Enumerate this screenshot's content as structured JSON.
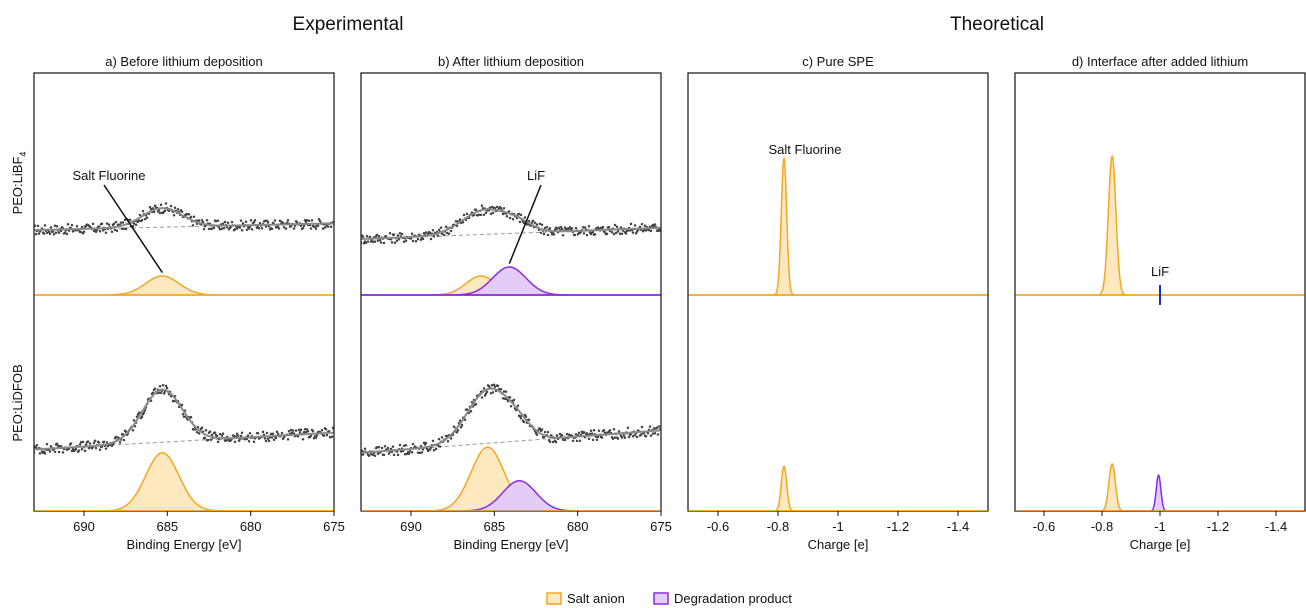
{
  "figure": {
    "group_titles": [
      "Experimental",
      "Theoretical"
    ],
    "row_labels": [
      "PEO:LiBF",
      "PEO:LiDFOB"
    ],
    "row_label_subscripts": [
      "4",
      ""
    ],
    "legend": [
      {
        "label": "Salt anion",
        "color": "#f5a623",
        "fill": "#fde8bf"
      },
      {
        "label": "Degradation product",
        "color": "#8b2be2",
        "fill": "#e3cdf6"
      }
    ]
  },
  "chart_data": [
    {
      "type": "area",
      "panel": "a",
      "title": "a) Before lithium deposition",
      "xlabel": "Binding Energy [eV]",
      "xlim": [
        693,
        675
      ],
      "xticks": [
        690,
        685,
        680,
        675
      ],
      "rows": [
        {
          "row": "PEO:LiBF4",
          "measured": {
            "baseline": [
              0.58,
              0.64
            ],
            "peaks": [
              {
                "center": 685.3,
                "height": 0.17,
                "width": 1.2
              }
            ]
          },
          "components": [
            {
              "series": "Salt anion",
              "center": 685.3,
              "height": 0.17,
              "width": 1.0
            }
          ],
          "annotations": [
            {
              "text": "Salt Fluorine",
              "x": 688.5,
              "target_x": 685.3
            }
          ]
        },
        {
          "row": "PEO:LiDFOB",
          "measured": {
            "baseline": [
              0.55,
              0.7
            ],
            "peaks": [
              {
                "center": 685.3,
                "height": 0.47,
                "width": 1.2
              }
            ]
          },
          "components": [
            {
              "series": "Salt anion",
              "center": 685.3,
              "height": 0.52,
              "width": 1.0
            }
          ],
          "annotations": []
        }
      ]
    },
    {
      "type": "area",
      "panel": "b",
      "title": "b) After lithium deposition",
      "xlabel": "Binding Energy [eV]",
      "xlim": [
        693,
        675
      ],
      "xticks": [
        690,
        685,
        680,
        675
      ],
      "rows": [
        {
          "row": "PEO:LiBF4",
          "measured": {
            "baseline": [
              0.5,
              0.6
            ],
            "peaks": [
              {
                "center": 685.5,
                "height": 0.22,
                "width": 1.4
              },
              {
                "center": 683.5,
                "height": 0.06,
                "width": 0.8
              }
            ]
          },
          "components": [
            {
              "series": "Salt anion",
              "center": 685.8,
              "height": 0.17,
              "width": 0.9
            },
            {
              "series": "Degradation product",
              "center": 684.1,
              "height": 0.25,
              "width": 1.0
            }
          ],
          "annotations": [
            {
              "text": "LiF",
              "x": 682.5,
              "target_x": 684.1
            }
          ]
        },
        {
          "row": "PEO:LiDFOB",
          "measured": {
            "baseline": [
              0.52,
              0.72
            ],
            "peaks": [
              {
                "center": 685.3,
                "height": 0.48,
                "width": 1.3
              },
              {
                "center": 683.5,
                "height": 0.08,
                "width": 0.8
              }
            ]
          },
          "components": [
            {
              "series": "Salt anion",
              "center": 685.4,
              "height": 0.57,
              "width": 1.0
            },
            {
              "series": "Degradation product",
              "center": 683.5,
              "height": 0.27,
              "width": 1.0
            }
          ],
          "annotations": []
        }
      ]
    },
    {
      "type": "area",
      "panel": "c",
      "title": "c) Pure SPE",
      "xlabel": "Charge [e]",
      "xlim": [
        -0.5,
        -1.5
      ],
      "xticks": [
        -0.6,
        -0.8,
        -1.0,
        -1.2,
        -1.4
      ],
      "rows": [
        {
          "row": "PEO:LiBF4",
          "components": [
            {
              "series": "Salt anion",
              "center": -0.82,
              "height": 1.22,
              "width": 0.009
            }
          ],
          "annotations": [
            {
              "text": "Salt Fluorine",
              "x": -0.89
            }
          ]
        },
        {
          "row": "PEO:LiDFOB",
          "components": [
            {
              "series": "Salt anion",
              "center": -0.82,
              "height": 0.4,
              "width": 0.009
            }
          ],
          "annotations": []
        }
      ]
    },
    {
      "type": "area",
      "panel": "d",
      "title": "d) Interface after added lithium",
      "xlabel": "Charge [e]",
      "xlim": [
        -0.5,
        -1.5
      ],
      "xticks": [
        -0.6,
        -0.8,
        -1.0,
        -1.2,
        -1.4
      ],
      "rows": [
        {
          "row": "PEO:LiBF4",
          "components": [
            {
              "series": "Salt anion",
              "center": -0.835,
              "height": 1.24,
              "width": 0.013
            }
          ],
          "markers": [
            {
              "text": "LiF",
              "x": -1.0,
              "color": "#1a2fbf"
            }
          ],
          "annotations": []
        },
        {
          "row": "PEO:LiDFOB",
          "components": [
            {
              "series": "Salt anion",
              "center": -0.835,
              "height": 0.42,
              "width": 0.011
            },
            {
              "series": "Degradation product",
              "center": -0.995,
              "height": 0.32,
              "width": 0.008
            }
          ],
          "annotations": []
        }
      ]
    }
  ]
}
